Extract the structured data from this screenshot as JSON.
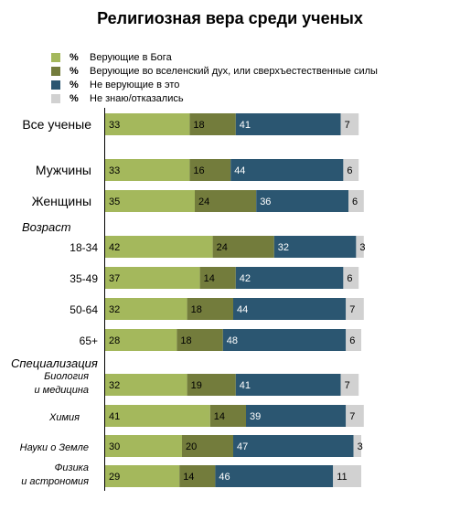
{
  "chart_data": {
    "type": "bar",
    "stacked": true,
    "orientation": "horizontal",
    "title": "Религиозная вера среди ученых",
    "unit": "%",
    "legend_placement": "top-left",
    "xlim": [
      0,
      100
    ],
    "series": [
      {
        "name": "Верующие в Бога",
        "color": "#a4b85c",
        "text_color": "#000000"
      },
      {
        "name": "Верующие во вселенский дух, или сверхъестественные силы",
        "color": "#737c3c",
        "text_color": "#000000"
      },
      {
        "name": "Не верующие в это",
        "color": "#2b5671",
        "text_color": "#ffffff"
      },
      {
        "name": "Не знаю/отказались",
        "color": "#d1d1d1",
        "text_color": "#000000"
      }
    ],
    "section_labels": {
      "age": "Возраст",
      "specialization": "Специализация"
    },
    "rows": [
      {
        "label": "Все ученые",
        "style": "main",
        "values": [
          33,
          18,
          41,
          7
        ]
      },
      {
        "label": "Мужчины",
        "style": "main",
        "values": [
          33,
          16,
          44,
          6
        ]
      },
      {
        "label": "Женщины",
        "style": "main",
        "values": [
          35,
          24,
          36,
          6
        ]
      },
      {
        "label": "18-34",
        "style": "sub",
        "values": [
          42,
          24,
          32,
          3
        ]
      },
      {
        "label": "35-49",
        "style": "sub",
        "values": [
          37,
          14,
          42,
          6
        ]
      },
      {
        "label": "50-64",
        "style": "sub",
        "values": [
          32,
          18,
          44,
          7
        ]
      },
      {
        "label": "65+",
        "style": "sub",
        "values": [
          28,
          18,
          48,
          6
        ]
      },
      {
        "label": [
          "Биология",
          "и медицина"
        ],
        "style": "ital",
        "values": [
          32,
          19,
          41,
          7
        ]
      },
      {
        "label": "Химия",
        "style": "ital",
        "values": [
          41,
          14,
          39,
          7
        ]
      },
      {
        "label": "Науки о Земле",
        "style": "ital",
        "values": [
          30,
          20,
          47,
          3
        ]
      },
      {
        "label": [
          "Физика",
          "и астрономия"
        ],
        "style": "ital",
        "values": [
          29,
          14,
          46,
          11
        ]
      }
    ]
  }
}
